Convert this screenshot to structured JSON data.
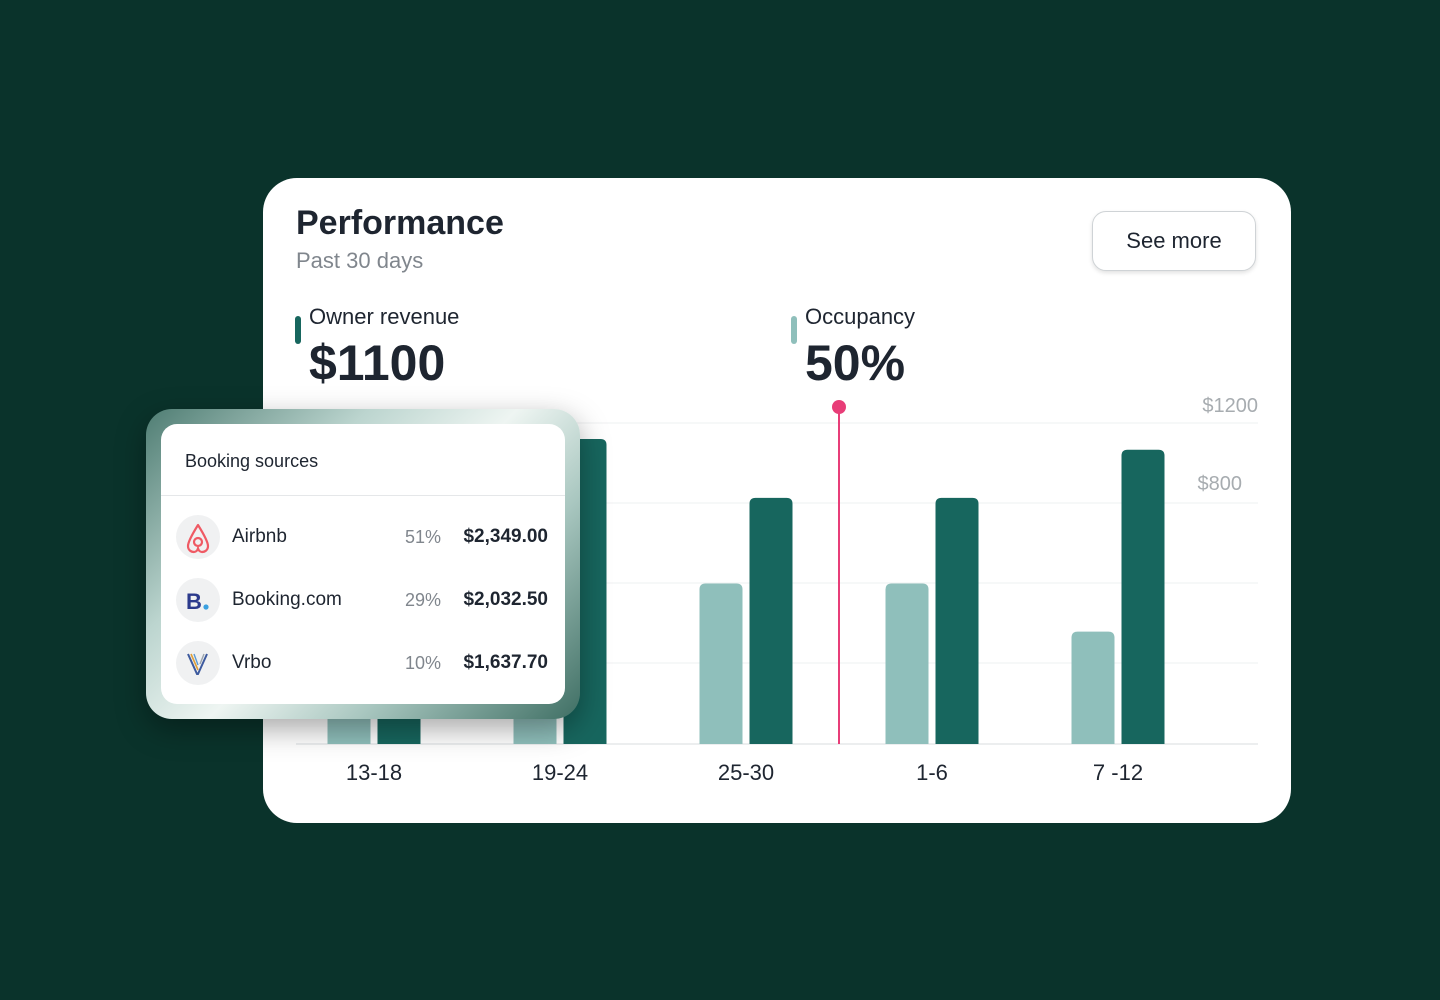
{
  "colors": {
    "background": "#0a332b",
    "revenue_bar": "#17665e",
    "occupancy_bar": "#8fbfbb",
    "marker": "#e83d78"
  },
  "header": {
    "title": "Performance",
    "subtitle": "Past 30 days",
    "see_more_label": "See more"
  },
  "metrics": {
    "revenue": {
      "label": "Owner revenue",
      "value": "$1100"
    },
    "occupancy": {
      "label": "Occupancy",
      "value": "50%"
    }
  },
  "chart_data": {
    "type": "bar",
    "categories": [
      "13-18",
      "19-24",
      "25-30",
      "1-6",
      "7 -12"
    ],
    "y_tick_labels": [
      "$1200",
      "$800"
    ],
    "y_ticks": [
      1200,
      800
    ],
    "ylim": [
      0,
      1200
    ],
    "series": [
      {
        "key": "occupancy",
        "color": "#8fbfbb",
        "values": [
          240,
          360,
          600,
          600,
          420
        ]
      },
      {
        "key": "revenue",
        "color": "#17665e",
        "values": [
          420,
          1140,
          920,
          920,
          1100
        ]
      }
    ],
    "marker_between": [
      "25-30",
      "1-6"
    ]
  },
  "booking_sources": {
    "title": "Booking sources",
    "items": [
      {
        "icon": "airbnb-icon",
        "name": "Airbnb",
        "percent": "51%",
        "amount": "$2,349.00"
      },
      {
        "icon": "booking-icon",
        "name": "Booking.com",
        "percent": "29%",
        "amount": "$2,032.50"
      },
      {
        "icon": "vrbo-icon",
        "name": "Vrbo",
        "percent": "10%",
        "amount": "$1,637.70"
      }
    ]
  }
}
